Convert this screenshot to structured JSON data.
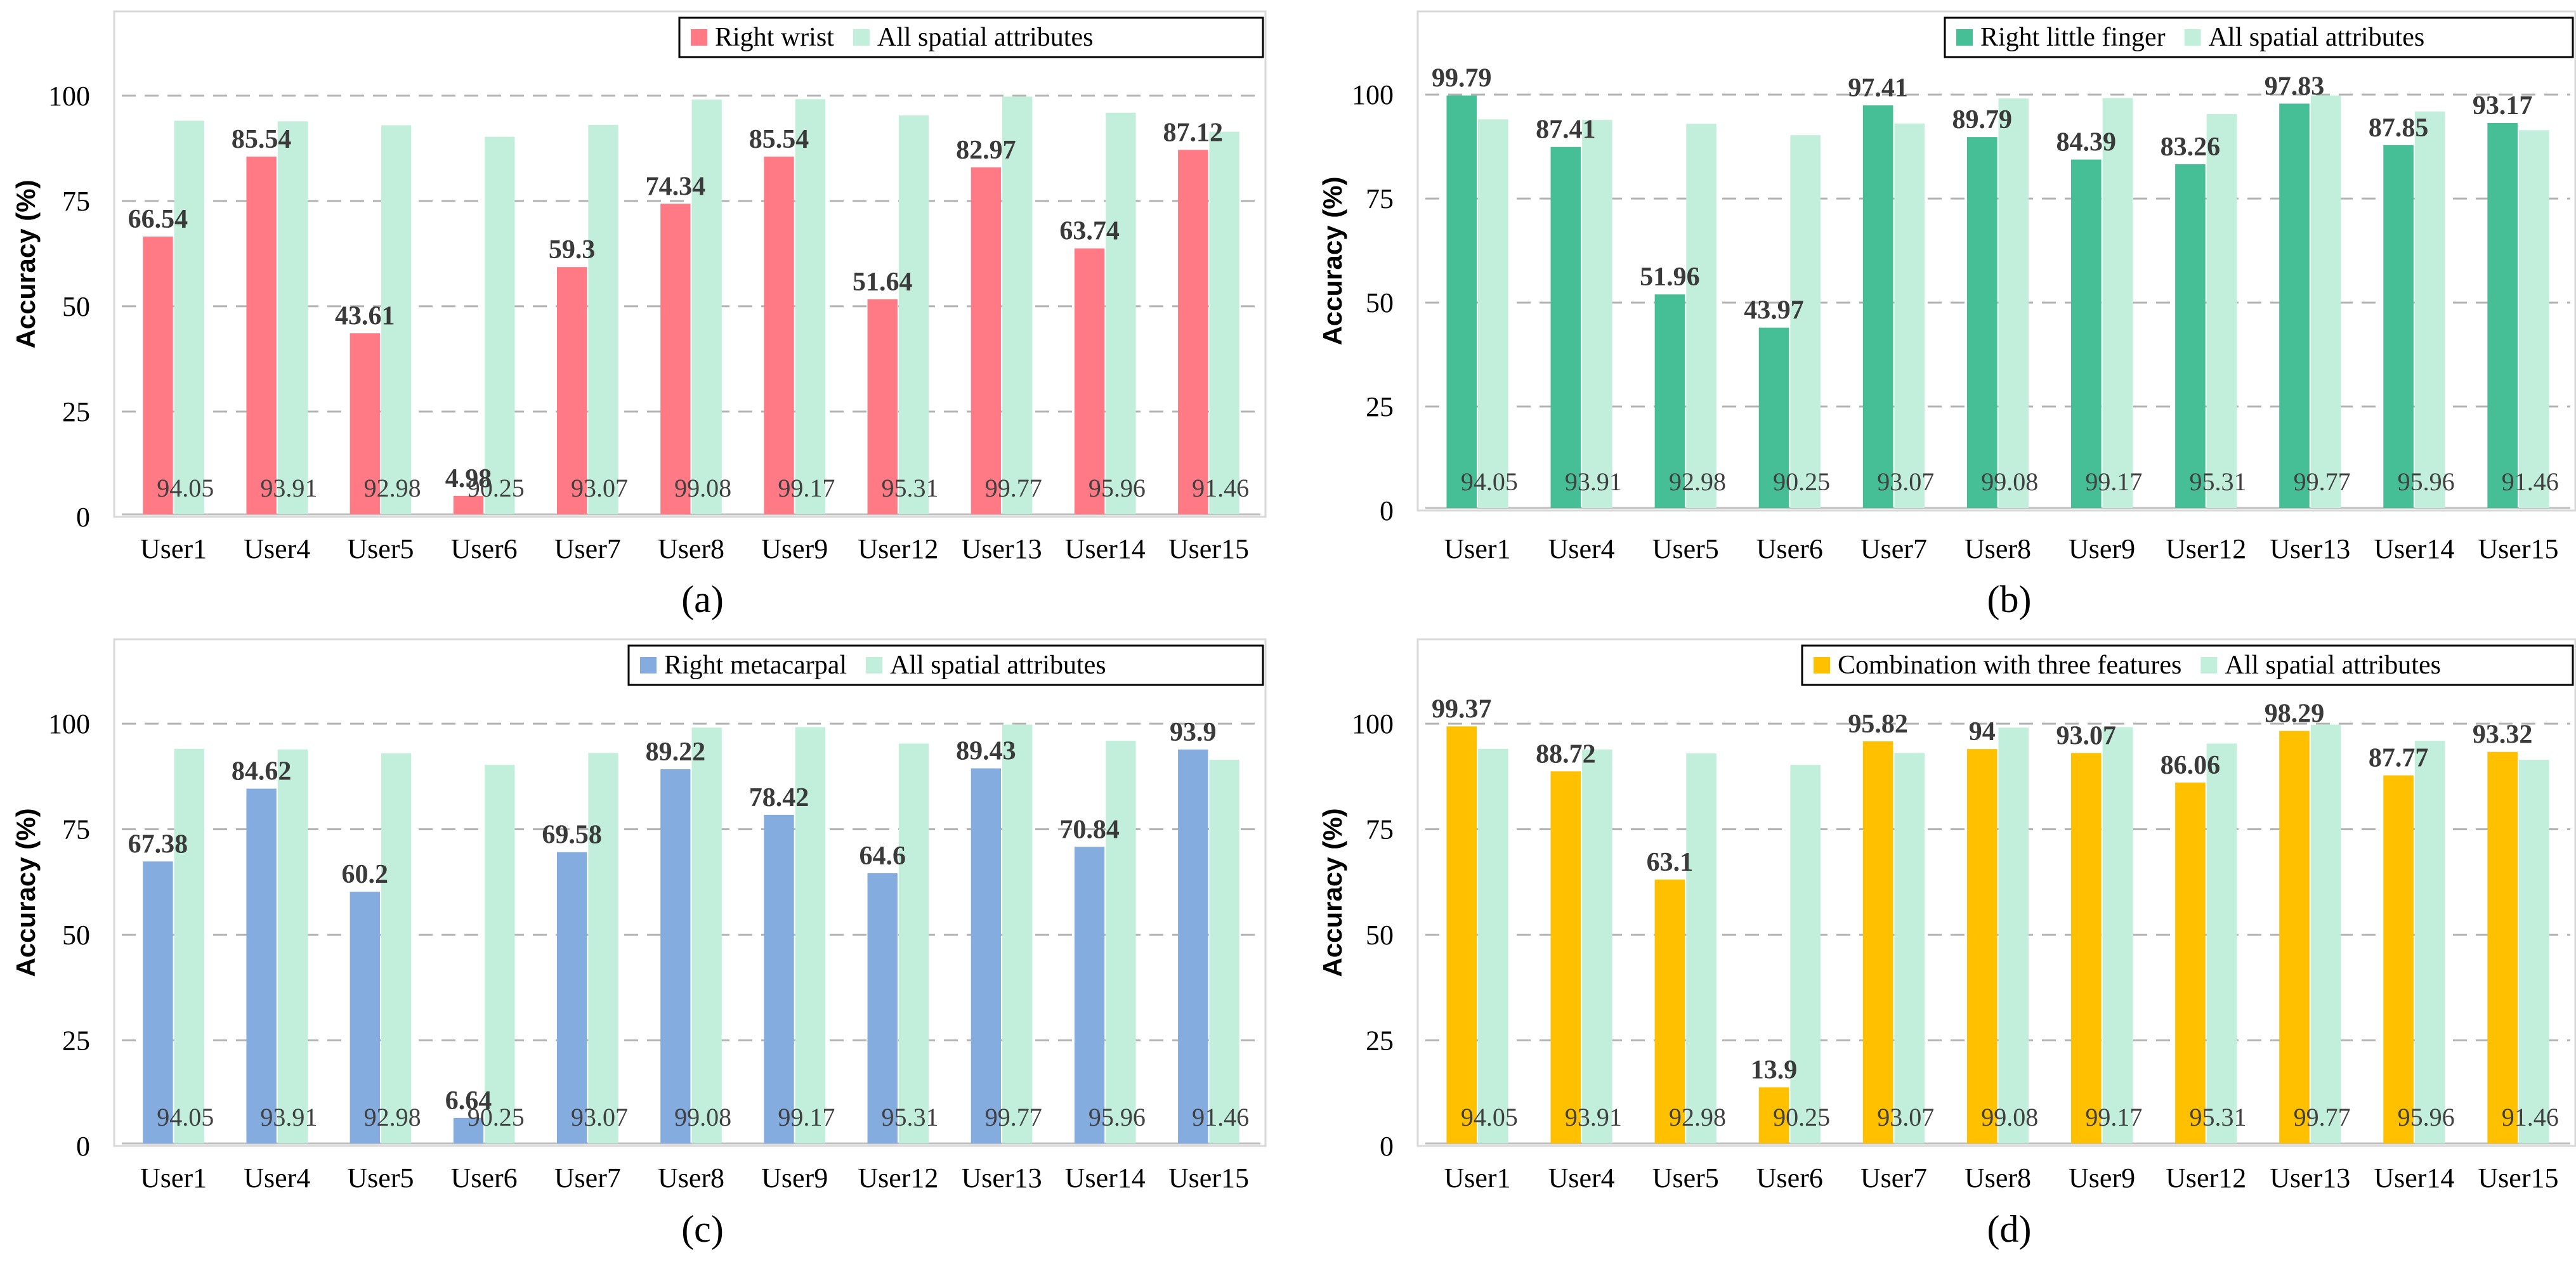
{
  "chart_data": [
    {
      "id": "a",
      "type": "bar",
      "caption": "(a)",
      "categories": [
        "User1",
        "User4",
        "User5",
        "User6",
        "User7",
        "User8",
        "User9",
        "User12",
        "User13",
        "User14",
        "User15"
      ],
      "series": [
        {
          "name": "Right wrist",
          "color": "#ff7a85",
          "values": [
            66.54,
            85.54,
            43.61,
            4.98,
            59.3,
            74.34,
            85.54,
            51.64,
            82.97,
            63.74,
            87.12
          ]
        },
        {
          "name": "All spatial attributes",
          "color": "#c2efdc",
          "values": [
            94.05,
            93.91,
            92.98,
            90.25,
            93.07,
            99.08,
            99.17,
            95.31,
            99.77,
            95.96,
            91.46
          ]
        }
      ],
      "ylabel": "Accuracy (%)",
      "yticks": [
        0,
        25,
        50,
        75,
        100
      ],
      "ylim": [
        0,
        120
      ],
      "legend": "top-right"
    },
    {
      "id": "b",
      "type": "bar",
      "caption": "(b)",
      "categories": [
        "User1",
        "User4",
        "User5",
        "User6",
        "User7",
        "User8",
        "User9",
        "User12",
        "User13",
        "User14",
        "User15"
      ],
      "series": [
        {
          "name": "Right little finger",
          "color": "#46bf97",
          "values": [
            99.79,
            87.41,
            51.96,
            43.97,
            97.41,
            89.79,
            84.39,
            83.26,
            97.83,
            87.85,
            93.17
          ]
        },
        {
          "name": "All spatial attributes",
          "color": "#c2efdc",
          "values": [
            94.05,
            93.91,
            92.98,
            90.25,
            93.07,
            99.08,
            99.17,
            95.31,
            99.77,
            95.96,
            91.46
          ]
        }
      ],
      "ylabel": "Accuracy (%)",
      "yticks": [
        0,
        25,
        50,
        75,
        100
      ],
      "ylim": [
        0,
        120
      ],
      "legend": "top-right"
    },
    {
      "id": "c",
      "type": "bar",
      "caption": "(c)",
      "categories": [
        "User1",
        "User4",
        "User5",
        "User6",
        "User7",
        "User8",
        "User9",
        "User12",
        "User13",
        "User14",
        "User15"
      ],
      "series": [
        {
          "name": "Right metacarpal",
          "color": "#84acdf",
          "values": [
            67.38,
            84.62,
            60.2,
            6.64,
            69.58,
            89.22,
            78.42,
            64.6,
            89.43,
            70.84,
            93.9
          ]
        },
        {
          "name": "All spatial attributes",
          "color": "#c2efdc",
          "values": [
            94.05,
            93.91,
            92.98,
            90.25,
            93.07,
            99.08,
            99.17,
            95.31,
            99.77,
            95.96,
            91.46
          ]
        }
      ],
      "ylabel": "Accuracy (%)",
      "yticks": [
        0,
        25,
        50,
        75,
        100
      ],
      "ylim": [
        0,
        120
      ],
      "legend": "top-right"
    },
    {
      "id": "d",
      "type": "bar",
      "caption": "(d)",
      "categories": [
        "User1",
        "User4",
        "User5",
        "User6",
        "User7",
        "User8",
        "User9",
        "User12",
        "User13",
        "User14",
        "User15"
      ],
      "series": [
        {
          "name": "Combination with three features",
          "color": "#ffc000",
          "values": [
            99.37,
            88.72,
            63.1,
            13.9,
            95.82,
            94,
            93.07,
            86.06,
            98.29,
            87.77,
            93.32
          ]
        },
        {
          "name": "All spatial attributes",
          "color": "#c2efdc",
          "values": [
            94.05,
            93.91,
            92.98,
            90.25,
            93.07,
            99.08,
            99.17,
            95.31,
            99.77,
            95.96,
            91.46
          ]
        }
      ],
      "ylabel": "Accuracy (%)",
      "yticks": [
        0,
        25,
        50,
        75,
        100
      ],
      "ylim": [
        0,
        120
      ],
      "legend": "top-right"
    }
  ]
}
